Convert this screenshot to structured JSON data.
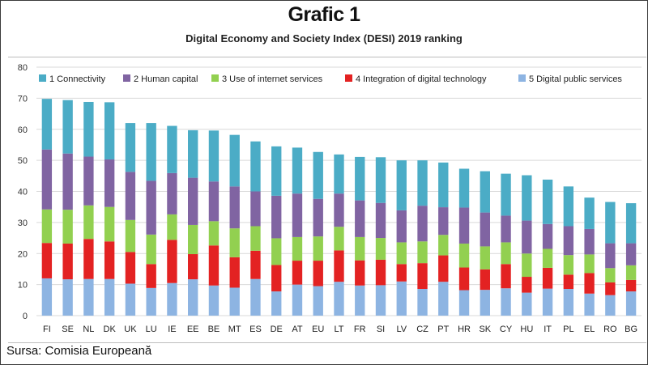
{
  "header": {
    "title": "Grafic 1",
    "subtitle": "Digital Economy and Society Index  (DESI) 2019 ranking"
  },
  "source": "Sursa: Comisia Europeană",
  "chart_data": {
    "type": "bar",
    "stacked": true,
    "categories": [
      "FI",
      "SE",
      "NL",
      "DK",
      "UK",
      "LU",
      "IE",
      "EE",
      "BE",
      "MT",
      "ES",
      "DE",
      "AT",
      "EU",
      "LT",
      "FR",
      "SI",
      "LV",
      "CZ",
      "PT",
      "HR",
      "SK",
      "CY",
      "HU",
      "IT",
      "PL",
      "EL",
      "RO",
      "BG"
    ],
    "series": [
      {
        "name": "5 Digital public services",
        "color": "#8db4e2",
        "values": [
          12.0,
          11.7,
          11.8,
          11.8,
          10.3,
          8.9,
          10.5,
          11.7,
          9.7,
          9.0,
          11.8,
          7.8,
          10.0,
          9.5,
          10.9,
          9.7,
          9.8,
          11.0,
          8.6,
          10.9,
          8.2,
          8.3,
          8.8,
          7.4,
          8.7,
          8.6,
          7.1,
          6.6,
          7.8
        ]
      },
      {
        "name": "4 Integration of digital technology",
        "color": "#e32222",
        "values": [
          11.4,
          11.5,
          12.9,
          12.1,
          10.2,
          7.7,
          13.9,
          8.1,
          12.9,
          9.8,
          9.1,
          8.5,
          7.7,
          8.2,
          10.1,
          8.1,
          8.2,
          5.6,
          8.3,
          8.5,
          7.3,
          6.6,
          7.8,
          5.1,
          6.7,
          4.6,
          6.6,
          4.1,
          3.7
        ]
      },
      {
        "name": "3 Use of internet services",
        "color": "#92d050",
        "values": [
          10.8,
          10.9,
          10.8,
          11.1,
          10.3,
          9.5,
          8.2,
          9.4,
          7.8,
          9.3,
          7.9,
          8.6,
          7.6,
          7.8,
          7.6,
          7.5,
          7.0,
          7.0,
          7.0,
          6.6,
          7.7,
          7.4,
          7.0,
          7.5,
          6.1,
          6.3,
          6.0,
          4.6,
          4.7
        ]
      },
      {
        "name": "2 Human capital",
        "color": "#8064a2",
        "values": [
          19.3,
          18.1,
          15.7,
          15.3,
          15.5,
          17.3,
          13.3,
          15.2,
          12.8,
          13.5,
          11.2,
          13.7,
          14.0,
          12.1,
          10.7,
          11.8,
          11.3,
          10.3,
          11.5,
          8.9,
          11.6,
          10.9,
          8.6,
          10.6,
          8.0,
          9.3,
          8.2,
          8.0,
          7.1
        ]
      },
      {
        "name": "1 Connectivity",
        "color": "#4bacc6",
        "values": [
          16.3,
          17.2,
          17.6,
          18.4,
          15.7,
          18.6,
          15.2,
          15.3,
          16.4,
          16.6,
          16.1,
          15.9,
          14.8,
          15.1,
          12.6,
          14.0,
          14.7,
          16.1,
          14.6,
          14.4,
          12.5,
          13.3,
          13.5,
          14.6,
          14.3,
          12.8,
          10.1,
          13.3,
          12.9
        ]
      }
    ],
    "legend_order": [
      "1 Connectivity",
      "2 Human capital",
      "3 Use of internet services",
      "4 Integration of digital technology",
      "5 Digital public services"
    ],
    "yticks": [
      0,
      10,
      20,
      30,
      40,
      50,
      60,
      70,
      80
    ],
    "ylim": [
      0,
      80
    ],
    "legend_position": "top",
    "grid": "horizontal"
  }
}
